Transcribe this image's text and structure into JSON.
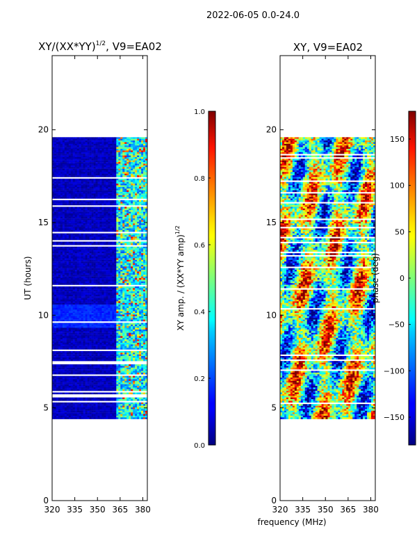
{
  "suptitle": "2022-06-05 0.0-24.0",
  "chart_data": [
    {
      "type": "heatmap",
      "title": "XY/(XX*YY)^(1/2), V9=EA02",
      "title_main": "XY/(XX*YY)",
      "title_exp": "1/2",
      "title_tail": ", V9=EA02",
      "xlabel": "",
      "ylabel": "UT (hours)",
      "xlim": [
        320,
        383
      ],
      "ylim": [
        0,
        24
      ],
      "xticks": [
        320,
        335,
        350,
        365,
        380
      ],
      "yticks": [
        0,
        5,
        10,
        15,
        20
      ],
      "data_time_range_hours": [
        4.4,
        19.6
      ],
      "active_band_mhz": [
        362,
        383
      ],
      "colorbar": {
        "label": "XY amp. / (XX*YY amp)^(1/2)",
        "label_main": "XY amp. / (XX*YY amp)",
        "label_exp": "1/2",
        "range": [
          0.0,
          1.0
        ],
        "ticks": [
          "0.0",
          "0.2",
          "0.4",
          "0.6",
          "0.8",
          "1.0"
        ]
      }
    },
    {
      "type": "heatmap",
      "title": "XY, V9=EA02",
      "xlabel": "frequency (MHz)",
      "ylabel": "",
      "xlim": [
        320,
        383
      ],
      "ylim": [
        0,
        24
      ],
      "xticks": [
        320,
        335,
        350,
        365,
        380
      ],
      "yticks": [
        0,
        5,
        10,
        15,
        20
      ],
      "data_time_range_hours": [
        4.4,
        19.6
      ],
      "colorbar": {
        "label": "phase (deg)",
        "range": [
          -180,
          180
        ],
        "ticks": [
          "150",
          "100",
          "50",
          "0",
          "−50",
          "−100",
          "−150"
        ]
      }
    }
  ]
}
